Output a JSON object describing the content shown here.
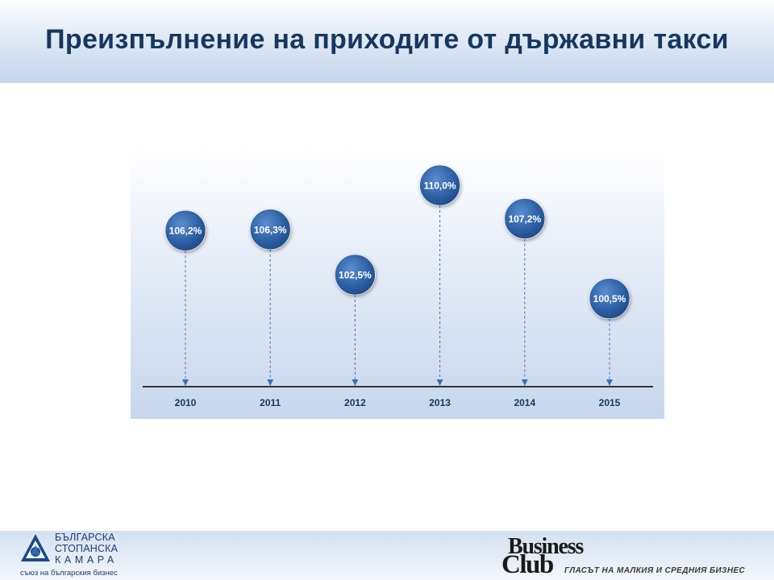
{
  "title": "Преизпълнение на приходите от държавни такси",
  "chart_data": {
    "type": "scatter",
    "categories": [
      "2010",
      "2011",
      "2012",
      "2013",
      "2014",
      "2015"
    ],
    "values": [
      106.2,
      106.3,
      102.5,
      110.0,
      107.2,
      100.5
    ],
    "labels": [
      "106,2%",
      "106,3%",
      "102,5%",
      "110,0%",
      "107,2%",
      "100,5%"
    ],
    "title": "",
    "xlabel": "",
    "ylabel": "",
    "ylim": [
      100,
      110
    ],
    "grid": false,
    "legend": "none"
  },
  "footer": {
    "bsk_line1": "БЪЛГАРСКА",
    "bsk_line2": "СТОПАНСКА",
    "bsk_line3": "КАМАРА",
    "bsk_sub": "съюз на българския бизнес",
    "bc_business": "Business",
    "bc_club": "Club",
    "bc_tagline": "ГЛАСЪТ НА МАЛКИЯ И СРЕДНИЯ БИЗНЕС"
  },
  "colors": {
    "title": "#17375e",
    "bubble": "#2f5f9f",
    "axis": "#333333"
  },
  "icons": {
    "bsk_logo": "bsk-triangle-logo-icon"
  }
}
